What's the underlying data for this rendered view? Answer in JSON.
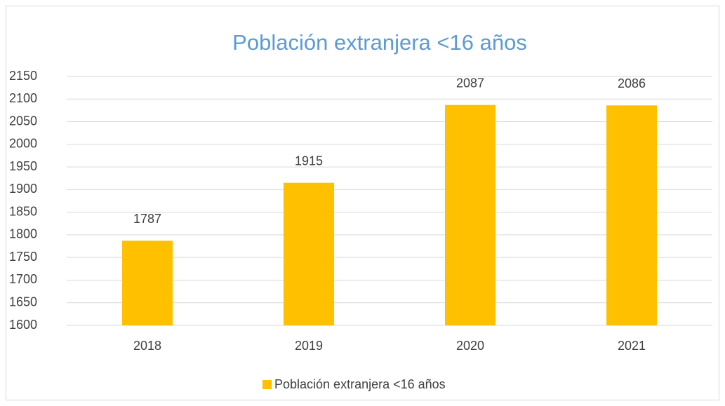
{
  "chart_data": {
    "type": "bar",
    "title": "Población extranjera <16 años",
    "categories": [
      "2018",
      "2019",
      "2020",
      "2021"
    ],
    "series": [
      {
        "name": "Población extranjera <16 años",
        "color": "#ffc000",
        "values": [
          1787,
          1915,
          2087,
          2086
        ]
      }
    ],
    "ylim": [
      1600,
      2150
    ],
    "yticks": [
      1600,
      1650,
      1700,
      1750,
      1800,
      1850,
      1900,
      1950,
      2000,
      2050,
      2100,
      2150
    ],
    "grid": true,
    "legend": "bottom",
    "data_labels": true
  }
}
